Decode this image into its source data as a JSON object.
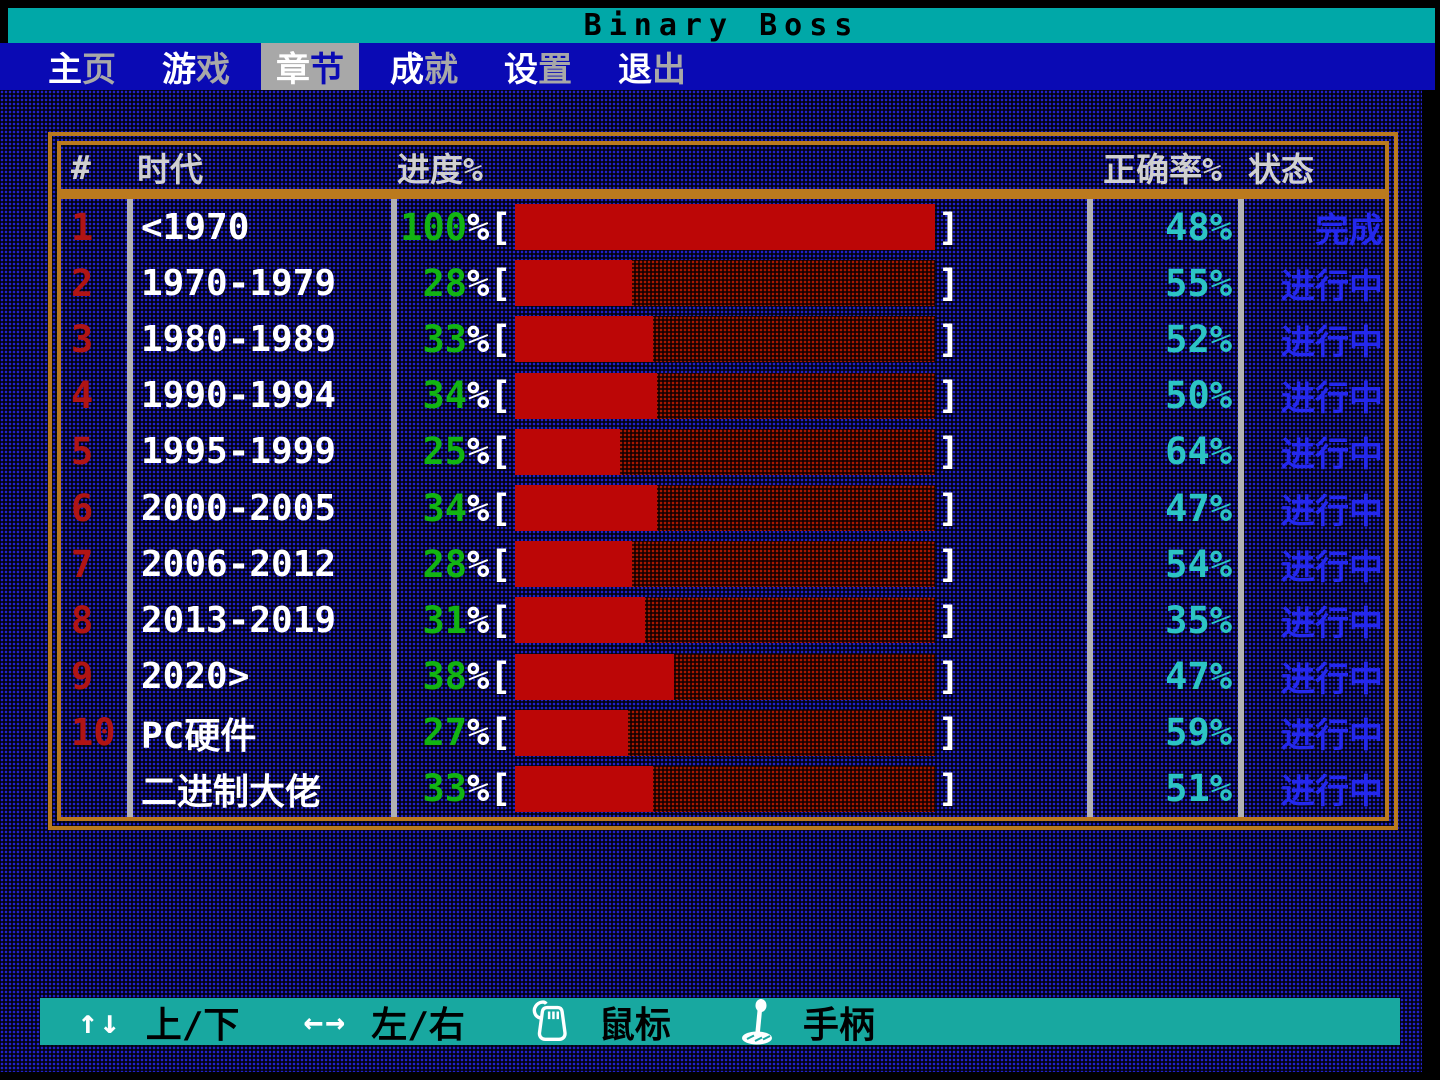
{
  "window": {
    "title": "Binary Boss"
  },
  "menu": {
    "items": [
      {
        "hot": "主",
        "rest": "页",
        "selected": false
      },
      {
        "hot": "游",
        "rest": "戏",
        "selected": false
      },
      {
        "hot": "章",
        "rest": "节",
        "selected": true
      },
      {
        "hot": "成",
        "rest": "就",
        "selected": false
      },
      {
        "hot": "设",
        "rest": "置",
        "selected": false
      },
      {
        "hot": "退",
        "rest": "出",
        "selected": false
      }
    ]
  },
  "table": {
    "headers": {
      "num": "#",
      "era": "时代",
      "progress": "进度%",
      "accuracy": "正确率%",
      "status": "状态"
    },
    "bar": {
      "open": "%[",
      "close": "]"
    },
    "accuracy_suffix": "%",
    "rows": [
      {
        "num": "1",
        "era": "<1970",
        "progress": 100,
        "accuracy": 48,
        "status": "完成"
      },
      {
        "num": "2",
        "era": "1970-1979",
        "progress": 28,
        "accuracy": 55,
        "status": "进行中"
      },
      {
        "num": "3",
        "era": "1980-1989",
        "progress": 33,
        "accuracy": 52,
        "status": "进行中"
      },
      {
        "num": "4",
        "era": "1990-1994",
        "progress": 34,
        "accuracy": 50,
        "status": "进行中"
      },
      {
        "num": "5",
        "era": "1995-1999",
        "progress": 25,
        "accuracy": 64,
        "status": "进行中"
      },
      {
        "num": "6",
        "era": "2000-2005",
        "progress": 34,
        "accuracy": 47,
        "status": "进行中"
      },
      {
        "num": "7",
        "era": "2006-2012",
        "progress": 28,
        "accuracy": 54,
        "status": "进行中"
      },
      {
        "num": "8",
        "era": "2013-2019",
        "progress": 31,
        "accuracy": 35,
        "status": "进行中"
      },
      {
        "num": "9",
        "era": "2020>",
        "progress": 38,
        "accuracy": 47,
        "status": "进行中"
      },
      {
        "num": "10",
        "era": "PC硬件",
        "progress": 27,
        "accuracy": 59,
        "status": "进行中"
      },
      {
        "num": "",
        "era": "二进制大佬",
        "progress": 33,
        "accuracy": 51,
        "status": "进行中"
      }
    ]
  },
  "legend": {
    "items": [
      {
        "icon": "up-down-arrows",
        "glyph": "↑↓",
        "label": "上/下"
      },
      {
        "icon": "left-right-arrows",
        "glyph": "←→",
        "label": "左/右"
      },
      {
        "icon": "mouse",
        "glyph": "",
        "label": "鼠标"
      },
      {
        "icon": "gamepad",
        "glyph": "",
        "label": "手柄"
      }
    ]
  },
  "colors": {
    "title_teal": "#00a8a8",
    "menu_blue": "#0a0ab4",
    "border_orange": "#bb7a1e",
    "bar_red": "#bc0606",
    "progress_green": "#12b412",
    "accuracy_cyan": "#2cc4c4",
    "status_blue": "#2428ee",
    "row_number_red": "#b01414"
  }
}
